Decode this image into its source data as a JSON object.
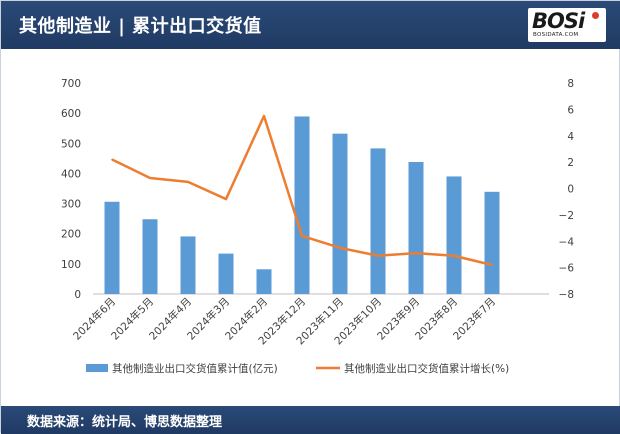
{
  "header": {
    "title": "其他制造业 | 累计出口交货值"
  },
  "logo": {
    "word": "BOSi",
    "sub": "BOSIDATA.COM"
  },
  "footer": {
    "source": "数据来源：统计局、博思数据整理"
  },
  "colors": {
    "bar": "#5b9bd5",
    "line": "#ed7d31",
    "header": "#1f3a63"
  },
  "chart_data": {
    "type": "bar",
    "categories": [
      "2024年6月",
      "2024年5月",
      "2024年4月",
      "2024年3月",
      "2024年2月",
      "2023年12月",
      "2023年11月",
      "2023年10月",
      "2023年9月",
      "2023年8月",
      "2023年7月"
    ],
    "series": [
      {
        "name": "其他制造业出口交货值累计值(亿元)",
        "type": "bar",
        "axis": "left",
        "values": [
          306,
          248,
          191,
          134,
          82,
          589,
          532,
          483,
          438,
          390,
          339
        ]
      },
      {
        "name": "其他制造业出口交货值累计增长(%)",
        "type": "line",
        "axis": "right",
        "values": [
          2.2,
          0.8,
          0.5,
          -0.8,
          5.5,
          -3.6,
          -4.5,
          -5.1,
          -4.9,
          -5.1,
          -5.8
        ]
      }
    ],
    "y_left": {
      "min": 0,
      "max": 700,
      "ticks": [
        0,
        100,
        200,
        300,
        400,
        500,
        600,
        700
      ]
    },
    "y_right": {
      "min": -8,
      "max": 8,
      "ticks": [
        -8,
        -6,
        -4,
        -2,
        0,
        2,
        4,
        6,
        8
      ]
    },
    "grid": false,
    "legend": "bottom"
  }
}
